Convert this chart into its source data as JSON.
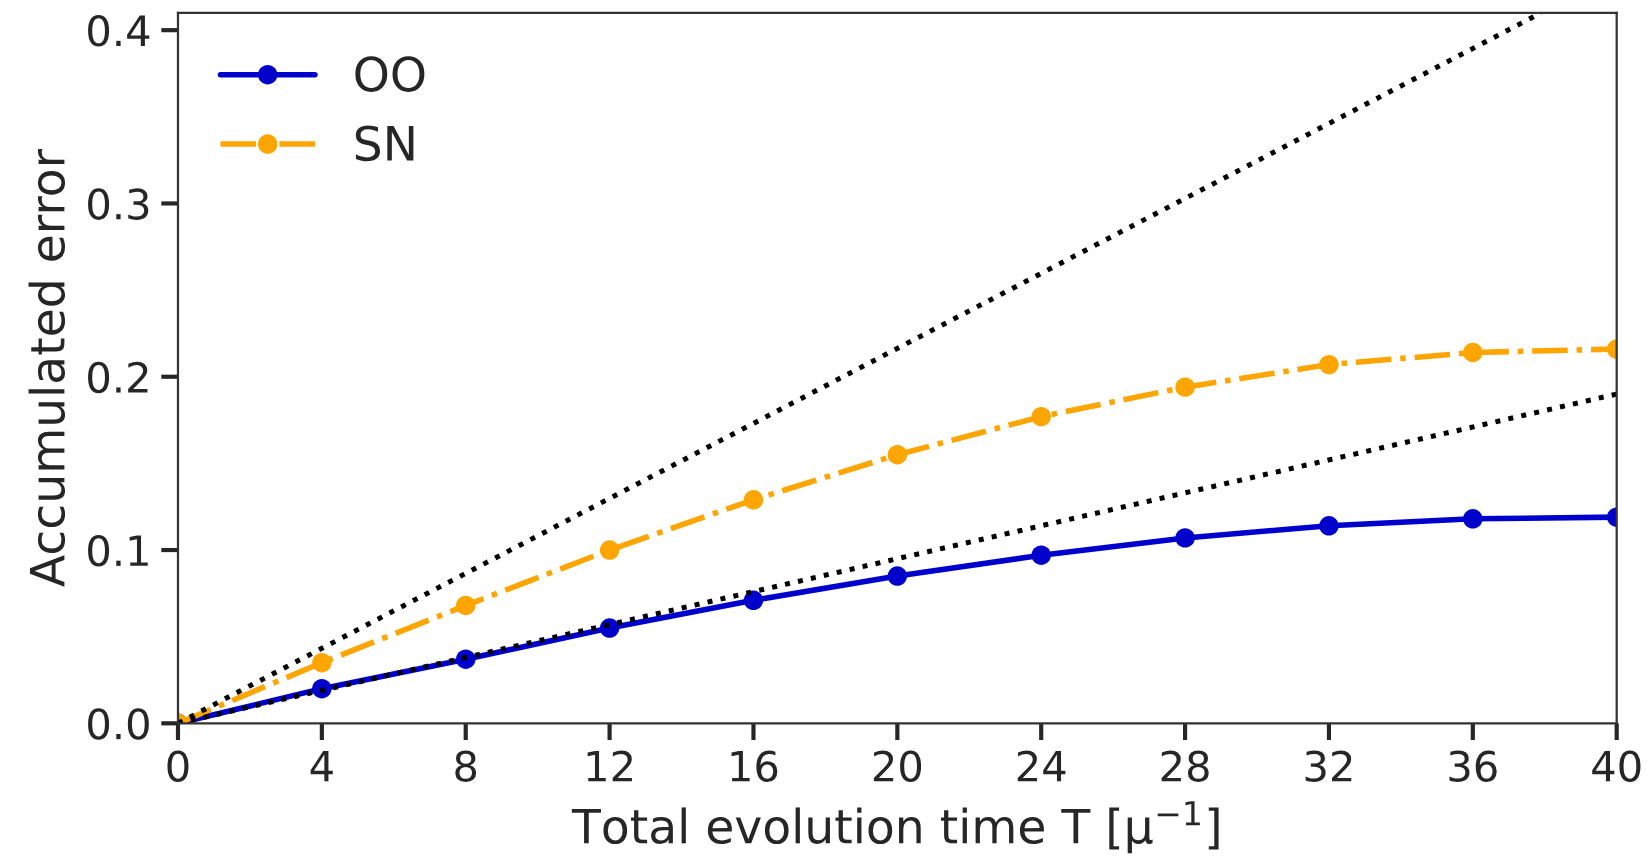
{
  "chart_data": {
    "type": "line",
    "xlabel": "Total evolution time T [μ$^{−1}$]",
    "ylabel": "Accumulated error",
    "x": [
      0,
      4,
      8,
      12,
      16,
      20,
      24,
      28,
      32,
      36,
      40
    ],
    "series": [
      {
        "name": "OO",
        "color": "#0000cc",
        "marker": "circle",
        "line_style": "solid",
        "values": [
          0,
          0.02,
          0.037,
          0.055,
          0.071,
          0.085,
          0.097,
          0.107,
          0.114,
          0.118,
          0.119
        ]
      },
      {
        "name": "SN",
        "color": "#ffa500",
        "marker": "circle",
        "line_style": "dashdot",
        "values": [
          0,
          0.035,
          0.068,
          0.1,
          0.129,
          0.155,
          0.177,
          0.194,
          0.207,
          0.214,
          0.216
        ]
      },
      {
        "color": "#000000",
        "marker": "none",
        "line_style": "dotted",
        "x": [
          0,
          37.9
        ],
        "values": [
          0,
          0.41
        ]
      },
      {
        "color": "#000000",
        "marker": "none",
        "line_style": "dotted",
        "x": [
          0,
          40
        ],
        "values": [
          0,
          0.19
        ]
      }
    ],
    "xlim": [
      0,
      40
    ],
    "xticks": [
      0,
      4,
      8,
      12,
      16,
      20,
      24,
      28,
      32,
      36,
      40
    ],
    "ylim": [
      0,
      0.41
    ],
    "yticks": [
      {
        "value": 0,
        "label": "0.0"
      },
      0.1,
      0.2,
      0.3,
      0.4
    ],
    "grid": false,
    "legend": "top left"
  }
}
